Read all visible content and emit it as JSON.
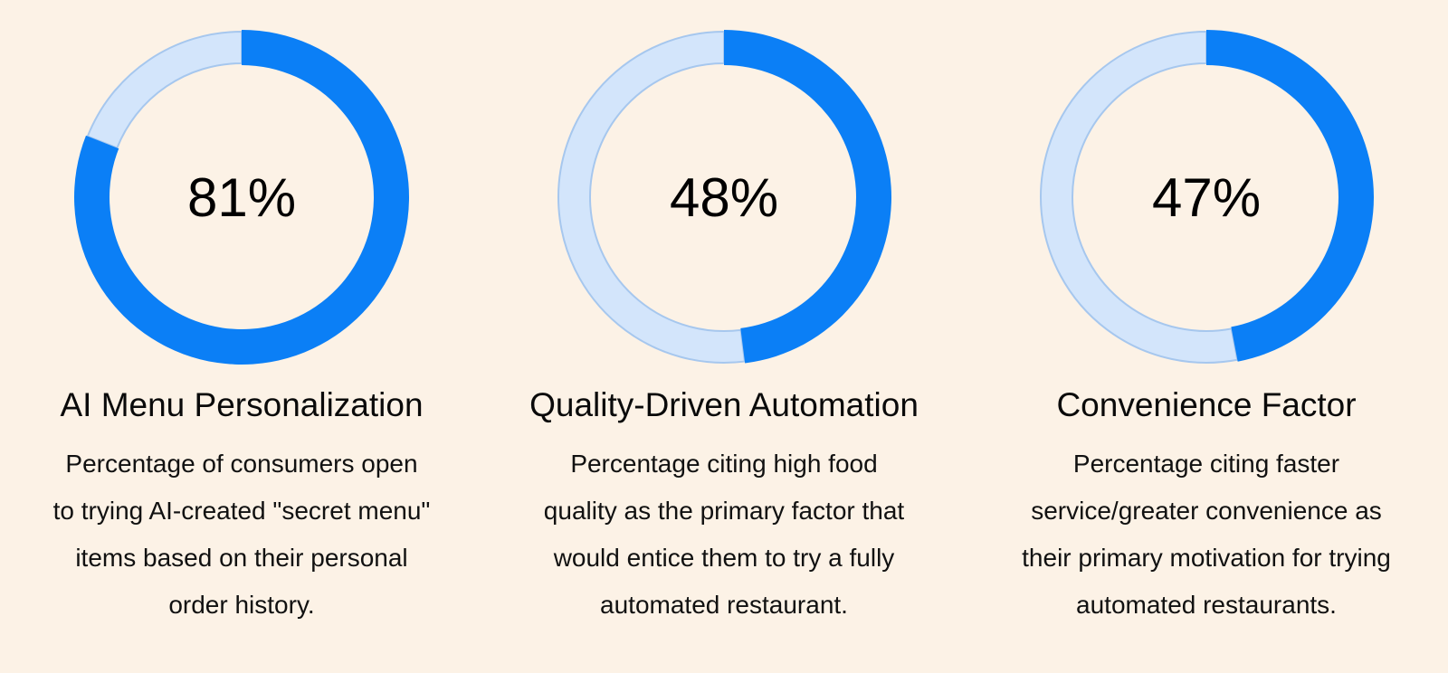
{
  "page": {
    "background_color": "#FCF2E6"
  },
  "colors": {
    "accent_blue": "#0B7FF6",
    "track_light_blue": "#D3E5FB",
    "track_border_blue": "#A6C7EE",
    "text_black": "#000000"
  },
  "cards": [
    {
      "percent": 81,
      "percent_label": "81%",
      "title": "AI Menu Personalization",
      "desc_lines": [
        "Percentage of consumers open",
        "to trying AI-created \"secret menu\"",
        "items based on their personal",
        "order history."
      ]
    },
    {
      "percent": 48,
      "percent_label": "48%",
      "title": "Quality-Driven Automation",
      "desc_lines": [
        "Percentage citing high food",
        "quality as the primary factor that",
        "would entice them to try a fully",
        "automated restaurant."
      ]
    },
    {
      "percent": 47,
      "percent_label": "47%",
      "title": "Convenience Factor",
      "desc_lines": [
        "Percentage citing faster",
        "service/greater convenience as",
        "their primary motivation for trying",
        "automated restaurants."
      ]
    }
  ],
  "chart_data": [
    {
      "type": "pie",
      "subtype": "donut",
      "title": "AI Menu Personalization",
      "center_label": "81%",
      "slices": [
        {
          "label": "cited",
          "value": 81,
          "color": "#0B7FF6"
        },
        {
          "label": "remainder",
          "value": 19,
          "color": "#D3E5FB"
        }
      ],
      "start_angle_deg": 0,
      "direction": "clockwise",
      "legend": "none",
      "annotation": "Percentage of consumers open to trying AI-created \"secret menu\" items based on their personal order history."
    },
    {
      "type": "pie",
      "subtype": "donut",
      "title": "Quality-Driven Automation",
      "center_label": "48%",
      "slices": [
        {
          "label": "cited",
          "value": 48,
          "color": "#0B7FF6"
        },
        {
          "label": "remainder",
          "value": 52,
          "color": "#D3E5FB"
        }
      ],
      "start_angle_deg": 0,
      "direction": "clockwise",
      "legend": "none",
      "annotation": "Percentage citing high food quality as the primary factor that would entice them to try a fully automated restaurant."
    },
    {
      "type": "pie",
      "subtype": "donut",
      "title": "Convenience Factor",
      "center_label": "47%",
      "slices": [
        {
          "label": "cited",
          "value": 47,
          "color": "#0B7FF6"
        },
        {
          "label": "remainder",
          "value": 53,
          "color": "#D3E5FB"
        }
      ],
      "start_angle_deg": 0,
      "direction": "clockwise",
      "legend": "none",
      "annotation": "Percentage citing faster service/greater convenience as their primary motivation for trying automated restaurants."
    }
  ]
}
